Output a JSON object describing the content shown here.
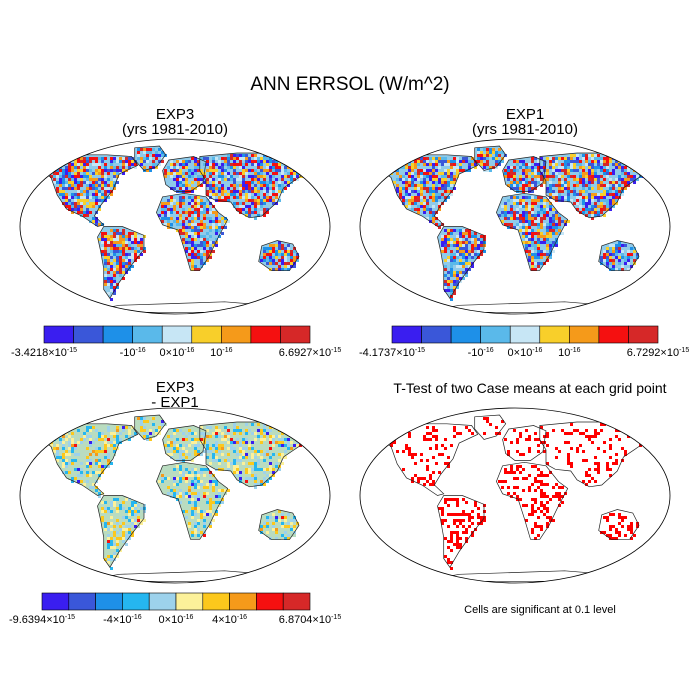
{
  "title": "ANN ERRSOL (W/m^2)",
  "panels": [
    {
      "id": "exp3",
      "title_line1": "EXP3",
      "title_line2": "(yrs 1981-2010)",
      "kind": "field",
      "colorbar": {
        "colors": [
          "#3a1ef0",
          "#3a57d9",
          "#1e90e8",
          "#5ab9ea",
          "#c7e6f5",
          "#f8cf2a",
          "#f59a1a",
          "#f51010",
          "#d62828"
        ],
        "labels": [
          {
            "mantissa": "-3.4218",
            "exp": "-15",
            "pos": 0
          },
          {
            "text": "-10",
            "exp": "-16",
            "pos": 3
          },
          {
            "mantissa": "0",
            "exp": "-16",
            "pos": 4.5
          },
          {
            "text": "10",
            "exp": "-16",
            "pos": 6
          },
          {
            "mantissa": "6.6927",
            "exp": "-15",
            "pos": 9
          }
        ]
      }
    },
    {
      "id": "exp1",
      "title_line1": "EXP1",
      "title_line2": "(yrs 1981-2010)",
      "kind": "field",
      "colorbar": {
        "colors": [
          "#3a1ef0",
          "#3a57d9",
          "#1e90e8",
          "#5ab9ea",
          "#c7e6f5",
          "#f8cf2a",
          "#f59a1a",
          "#f51010",
          "#d62828"
        ],
        "labels": [
          {
            "mantissa": "-4.1737",
            "exp": "-15",
            "pos": 0
          },
          {
            "text": "-10",
            "exp": "-16",
            "pos": 3
          },
          {
            "mantissa": "0",
            "exp": "-16",
            "pos": 4.5
          },
          {
            "text": "10",
            "exp": "-16",
            "pos": 6
          },
          {
            "mantissa": "6.7292",
            "exp": "-15",
            "pos": 9
          }
        ]
      }
    },
    {
      "id": "diff",
      "title_line1": "EXP3",
      "title_line2": "- EXP1",
      "kind": "diff",
      "colorbar": {
        "colors": [
          "#3a1ef0",
          "#3a57d9",
          "#1e90e8",
          "#25b6f0",
          "#9dd2ec",
          "#fcf19a",
          "#fcc81c",
          "#f59a1a",
          "#f51010",
          "#d62828"
        ],
        "labels": [
          {
            "mantissa": "-9.6394",
            "exp": "-15",
            "pos": 0
          },
          {
            "mantissa": "-4",
            "exp": "-16",
            "pos": 3
          },
          {
            "mantissa": "0",
            "exp": "-16",
            "pos": 5
          },
          {
            "mantissa": "4",
            "exp": "-16",
            "pos": 7
          },
          {
            "mantissa": "6.8704",
            "exp": "-15",
            "pos": 10
          }
        ]
      }
    },
    {
      "id": "ttest",
      "title_line1": "T-Test of two Case means at each grid point",
      "title_line2": "",
      "kind": "ttest",
      "note": "Cells are significant at 0.1 level",
      "significant_color": "#ff0000"
    }
  ]
}
